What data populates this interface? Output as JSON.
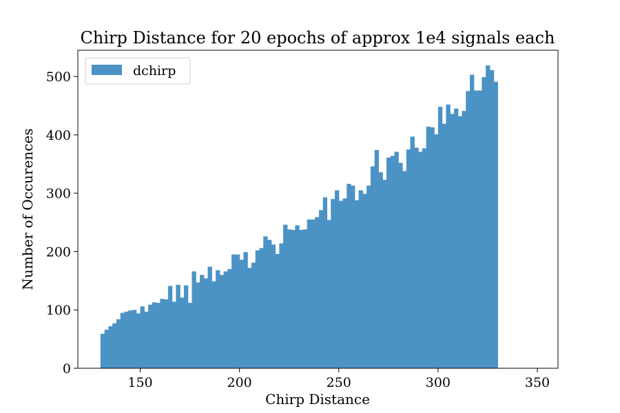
{
  "chart_data": {
    "type": "bar",
    "title": "Chirp Distance for 20 epochs of approx 1e4 signals each",
    "xlabel": "Chirp Distance",
    "ylabel": "Number of Occurences",
    "xlim": [
      118.6,
      360.4
    ],
    "ylim": [
      0,
      545
    ],
    "xticks": [
      "150",
      "200",
      "250",
      "300",
      "350"
    ],
    "yticks": [
      "0",
      "100",
      "200",
      "300",
      "400",
      "500"
    ],
    "grid": false,
    "legend_position": "top-left",
    "bar_color": "#4c93c5",
    "bin_start": 130,
    "bin_width": 2,
    "series": [
      {
        "name": "dchirp",
        "values": [
          59,
          66,
          72,
          77,
          84,
          95,
          97,
          99,
          100,
          94,
          106,
          97,
          109,
          113,
          112,
          119,
          118,
          141,
          114,
          143,
          121,
          142,
          112,
          166,
          147,
          160,
          154,
          174,
          149,
          168,
          160,
          166,
          170,
          195,
          195,
          186,
          199,
          172,
          181,
          202,
          206,
          226,
          220,
          212,
          196,
          214,
          246,
          238,
          237,
          245,
          237,
          238,
          255,
          255,
          259,
          271,
          293,
          254,
          290,
          305,
          287,
          291,
          316,
          313,
          288,
          305,
          299,
          313,
          346,
          374,
          336,
          323,
          361,
          364,
          371,
          352,
          338,
          375,
          397,
          378,
          371,
          377,
          414,
          413,
          401,
          448,
          419,
          452,
          436,
          445,
          432,
          441,
          475,
          503,
          476,
          476,
          499,
          519,
          511,
          491
        ]
      }
    ]
  }
}
